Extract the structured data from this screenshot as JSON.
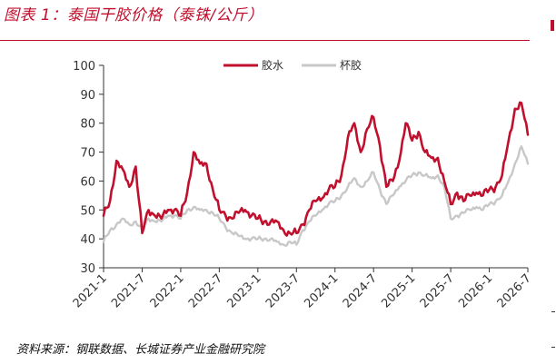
{
  "figure_title": "图表 1：泰国干胶价格（泰铢/公斤）",
  "source_note": "资料来源：钢联数据、长城证券产业金融研究院",
  "colors": {
    "accent": "#c0102d",
    "series1": "#c0102d",
    "series2": "#c8c8c8"
  },
  "chart_data": {
    "type": "line",
    "title": "",
    "xlabel": "",
    "ylabel": "",
    "ylim": [
      30,
      100
    ],
    "yticks": [
      30,
      40,
      50,
      60,
      70,
      80,
      90,
      100
    ],
    "xlim": [
      "2021-01",
      "2026-07"
    ],
    "xticks": [
      "2021-1",
      "2021-7",
      "2022-1",
      "2022-7",
      "2023-1",
      "2023-7",
      "2024-1",
      "2024-7",
      "2025-1",
      "2025-7",
      "2026-1",
      "2026-7"
    ],
    "grid": false,
    "legend_position": "top",
    "series": [
      {
        "name": "胶水",
        "color": "#c0102d",
        "points": [
          [
            "2021-01",
            48
          ],
          [
            "2021-02",
            53
          ],
          [
            "2021-03",
            67
          ],
          [
            "2021-04",
            64
          ],
          [
            "2021-05",
            58
          ],
          [
            "2021-06",
            65
          ],
          [
            "2021-07",
            42
          ],
          [
            "2021-08",
            50
          ],
          [
            "2021-09",
            48
          ],
          [
            "2021-10",
            47
          ],
          [
            "2021-11",
            50
          ],
          [
            "2021-12",
            50
          ],
          [
            "2022-01",
            48
          ],
          [
            "2022-02",
            56
          ],
          [
            "2022-03",
            70
          ],
          [
            "2022-04",
            66
          ],
          [
            "2022-05",
            66
          ],
          [
            "2022-06",
            57
          ],
          [
            "2022-07",
            50
          ],
          [
            "2022-08",
            48
          ],
          [
            "2022-09",
            47
          ],
          [
            "2022-10",
            49
          ],
          [
            "2022-11",
            50
          ],
          [
            "2022-12",
            48
          ],
          [
            "2023-01",
            47
          ],
          [
            "2023-02",
            46
          ],
          [
            "2023-03",
            46
          ],
          [
            "2023-04",
            46
          ],
          [
            "2023-05",
            43
          ],
          [
            "2023-06",
            42
          ],
          [
            "2023-07",
            42
          ],
          [
            "2023-08",
            45
          ],
          [
            "2023-09",
            50
          ],
          [
            "2023-10",
            53
          ],
          [
            "2023-11",
            54
          ],
          [
            "2023-12",
            57
          ],
          [
            "2024-01",
            58
          ],
          [
            "2024-02",
            62
          ],
          [
            "2024-03",
            75
          ],
          [
            "2024-04",
            80
          ],
          [
            "2024-05",
            70
          ],
          [
            "2024-06",
            78
          ],
          [
            "2024-07",
            82
          ],
          [
            "2024-08",
            72
          ],
          [
            "2024-09",
            58
          ],
          [
            "2024-10",
            60
          ],
          [
            "2024-11",
            67
          ],
          [
            "2024-12",
            80
          ],
          [
            "2025-01",
            74
          ],
          [
            "2025-02",
            77
          ],
          [
            "2025-03",
            70
          ],
          [
            "2025-04",
            68
          ],
          [
            "2025-05",
            68
          ],
          [
            "2025-06",
            60
          ],
          [
            "2025-07",
            52
          ],
          [
            "2025-08",
            56
          ],
          [
            "2025-09",
            53
          ],
          [
            "2025-10",
            55
          ],
          [
            "2025-11",
            56
          ],
          [
            "2025-12",
            55
          ],
          [
            "2026-01",
            57
          ],
          [
            "2026-02",
            58
          ],
          [
            "2026-03",
            62
          ],
          [
            "2026-04",
            74
          ],
          [
            "2026-05",
            85
          ],
          [
            "2026-06",
            87
          ],
          [
            "2026-07",
            76
          ]
        ]
      },
      {
        "name": "杯胶",
        "color": "#c8c8c8",
        "points": [
          [
            "2021-01",
            39
          ],
          [
            "2021-02",
            43
          ],
          [
            "2021-03",
            45
          ],
          [
            "2021-04",
            47
          ],
          [
            "2021-05",
            45
          ],
          [
            "2021-06",
            46
          ],
          [
            "2021-07",
            43
          ],
          [
            "2021-08",
            47
          ],
          [
            "2021-09",
            46
          ],
          [
            "2021-10",
            46
          ],
          [
            "2021-11",
            48
          ],
          [
            "2021-12",
            48
          ],
          [
            "2022-01",
            47
          ],
          [
            "2022-02",
            50
          ],
          [
            "2022-03",
            51
          ],
          [
            "2022-04",
            50
          ],
          [
            "2022-05",
            50
          ],
          [
            "2022-06",
            49
          ],
          [
            "2022-07",
            47
          ],
          [
            "2022-08",
            44
          ],
          [
            "2022-09",
            42
          ],
          [
            "2022-10",
            41
          ],
          [
            "2022-11",
            40
          ],
          [
            "2022-12",
            40
          ],
          [
            "2023-01",
            40
          ],
          [
            "2023-02",
            40
          ],
          [
            "2023-03",
            40
          ],
          [
            "2023-04",
            39
          ],
          [
            "2023-05",
            38
          ],
          [
            "2023-06",
            39
          ],
          [
            "2023-07",
            38
          ],
          [
            "2023-08",
            43
          ],
          [
            "2023-09",
            46
          ],
          [
            "2023-10",
            48
          ],
          [
            "2023-11",
            50
          ],
          [
            "2023-12",
            52
          ],
          [
            "2024-01",
            53
          ],
          [
            "2024-02",
            55
          ],
          [
            "2024-03",
            58
          ],
          [
            "2024-04",
            61
          ],
          [
            "2024-05",
            58
          ],
          [
            "2024-06",
            60
          ],
          [
            "2024-07",
            63
          ],
          [
            "2024-08",
            57
          ],
          [
            "2024-09",
            52
          ],
          [
            "2024-10",
            55
          ],
          [
            "2024-11",
            58
          ],
          [
            "2024-12",
            60
          ],
          [
            "2025-01",
            62
          ],
          [
            "2025-02",
            63
          ],
          [
            "2025-03",
            62
          ],
          [
            "2025-04",
            61
          ],
          [
            "2025-05",
            62
          ],
          [
            "2025-06",
            58
          ],
          [
            "2025-07",
            47
          ],
          [
            "2025-08",
            48
          ],
          [
            "2025-09",
            49
          ],
          [
            "2025-10",
            50
          ],
          [
            "2025-11",
            51
          ],
          [
            "2025-12",
            50
          ],
          [
            "2026-01",
            52
          ],
          [
            "2026-02",
            53
          ],
          [
            "2026-03",
            55
          ],
          [
            "2026-04",
            60
          ],
          [
            "2026-05",
            66
          ],
          [
            "2026-06",
            72
          ],
          [
            "2026-07",
            66
          ]
        ]
      }
    ]
  }
}
